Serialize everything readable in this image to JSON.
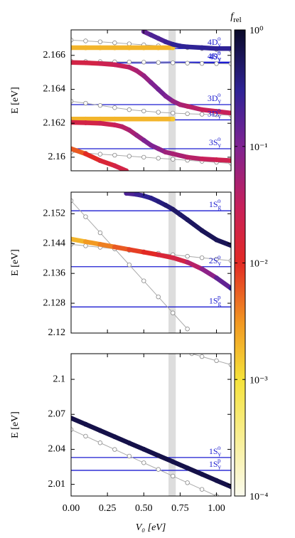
{
  "chart_data": [
    {
      "type": "line",
      "ylabel": "E [eV]",
      "xlim": [
        0,
        1.1
      ],
      "ylim": [
        2.1592,
        2.1675
      ],
      "xticks": [
        0,
        0.25,
        0.5,
        0.75,
        1
      ],
      "yticks": [
        2.166,
        2.164,
        2.162,
        2.16
      ],
      "shaded_x": [
        0.67,
        0.72
      ],
      "levels": [
        {
          "label": "4D",
          "sub": "y",
          "sup": "o",
          "value": 2.1664
        },
        {
          "label": "4D",
          "sub": "y",
          "sup": "o",
          "value": 2.1656
        },
        {
          "label": "4S",
          "sub": "y",
          "sup": "o",
          "value": 2.16555
        },
        {
          "label": "3D",
          "sub": "y",
          "sup": "o",
          "value": 2.1631
        },
        {
          "label": "3D",
          "sub": "y",
          "sup": "o",
          "value": 2.1622
        },
        {
          "label": "3S",
          "sub": "y",
          "sup": "o",
          "value": 2.1605
        }
      ],
      "series": [
        {
          "style": "open",
          "x": [
            0,
            0.1,
            0.2,
            0.3,
            0.4,
            0.5,
            0.6,
            0.7,
            0.8,
            0.9,
            1.0,
            1.1
          ],
          "values": [
            2.1669,
            2.16685,
            2.1668,
            2.16674,
            2.16668,
            2.16662,
            2.16656,
            2.1665,
            2.16645,
            2.1664,
            2.16635,
            2.1663
          ]
        },
        {
          "style": "open",
          "x": [
            0,
            0.1,
            0.2,
            0.3,
            0.4,
            0.5,
            0.6,
            0.7,
            0.8,
            0.9,
            1.0,
            1.1
          ],
          "values": [
            2.16565,
            2.16564,
            2.16563,
            2.16562,
            2.16561,
            2.1656,
            2.16558,
            2.16556,
            2.16554,
            2.16552,
            2.16551,
            2.1655
          ]
        },
        {
          "style": "open",
          "x": [
            0,
            0.1,
            0.2,
            0.3,
            0.4,
            0.5,
            0.6,
            0.7,
            0.8,
            0.9,
            1.0,
            1.1
          ],
          "values": [
            2.1633,
            2.16318,
            2.16305,
            2.16292,
            2.1628,
            2.16272,
            2.16265,
            2.1626,
            2.16256,
            2.16253,
            2.1625,
            2.16248
          ]
        },
        {
          "style": "open",
          "x": [
            0,
            0.1,
            0.2,
            0.3,
            0.4,
            0.5,
            0.6,
            0.7,
            0.8,
            0.9,
            1.0,
            1.1
          ],
          "values": [
            2.1603,
            2.16024,
            2.16018,
            2.16012,
            2.16006,
            2.16,
            2.15994,
            2.15988,
            2.15982,
            2.15976,
            2.1597,
            2.15964
          ]
        },
        {
          "style": "filled",
          "x": [
            0,
            0.1,
            0.2,
            0.3,
            0.4,
            0.5,
            0.6,
            0.7
          ],
          "values": [
            2.16645,
            2.16645,
            2.16645,
            2.16645,
            2.16645,
            2.16645,
            2.16645,
            2.16645
          ],
          "f": [
            0.002,
            0.002,
            0.002,
            0.002,
            0.002,
            0.002,
            0.002,
            0.0015
          ]
        },
        {
          "style": "filled",
          "x": [
            0,
            0.1,
            0.2,
            0.3,
            0.4,
            0.5,
            0.6,
            0.7
          ],
          "values": [
            2.16225,
            2.16225,
            2.16225,
            2.16225,
            2.16225,
            2.16225,
            2.16225,
            2.16225
          ],
          "f": [
            0.002,
            0.002,
            0.002,
            0.002,
            0.002,
            0.002,
            0.002,
            0.0015
          ]
        },
        {
          "style": "filled",
          "x": [
            0.5,
            0.55,
            0.6,
            0.65,
            0.7,
            0.75,
            0.8,
            0.9,
            1.0,
            1.1
          ],
          "values": [
            2.1674,
            2.1672,
            2.167,
            2.1668,
            2.16665,
            2.16655,
            2.1665,
            2.16645,
            2.1664,
            2.1664
          ],
          "f": [
            0.15,
            0.2,
            0.2,
            0.25,
            0.3,
            0.3,
            0.3,
            0.3,
            0.3,
            0.3
          ]
        },
        {
          "style": "filled",
          "x": [
            0,
            0.1,
            0.2,
            0.3,
            0.4,
            0.45,
            0.5,
            0.55,
            0.6,
            0.65,
            0.7,
            0.75,
            0.8,
            0.9,
            1.0,
            1.1
          ],
          "values": [
            2.16558,
            2.16556,
            2.16552,
            2.16545,
            2.1653,
            2.1651,
            2.1648,
            2.1644,
            2.164,
            2.1636,
            2.1633,
            2.1631,
            2.163,
            2.1628,
            2.1627,
            2.1626
          ],
          "f": [
            0.02,
            0.02,
            0.025,
            0.03,
            0.04,
            0.05,
            0.07,
            0.1,
            0.12,
            0.1,
            0.07,
            0.05,
            0.04,
            0.03,
            0.03,
            0.025
          ]
        },
        {
          "style": "filled",
          "x": [
            0,
            0.1,
            0.2,
            0.3,
            0.35,
            0.4,
            0.45,
            0.5,
            0.55,
            0.6,
            0.65,
            0.7,
            0.8,
            0.9,
            1.0,
            1.1
          ],
          "values": [
            2.16205,
            2.16203,
            2.162,
            2.1619,
            2.1618,
            2.1616,
            2.1613,
            2.161,
            2.1607,
            2.1605,
            2.1603,
            2.1602,
            2.16,
            2.1599,
            2.15985,
            2.1598
          ],
          "f": [
            0.02,
            0.02,
            0.025,
            0.03,
            0.04,
            0.05,
            0.07,
            0.1,
            0.1,
            0.08,
            0.06,
            0.05,
            0.04,
            0.03,
            0.025,
            0.02
          ]
        },
        {
          "style": "filled",
          "x": [
            0,
            0.1,
            0.2,
            0.3,
            0.38
          ],
          "values": [
            2.1605,
            2.1602,
            2.1598,
            2.1595,
            2.1592
          ],
          "f": [
            0.006,
            0.01,
            0.015,
            0.02,
            0.02
          ]
        }
      ]
    },
    {
      "type": "line",
      "ylabel": "E [eV]",
      "xlim": [
        0,
        1.1
      ],
      "ylim": [
        2.12,
        2.1578
      ],
      "xticks": [
        0,
        0.25,
        0.5,
        0.75,
        1
      ],
      "yticks": [
        2.152,
        2.144,
        2.136,
        2.128,
        2.12
      ],
      "shaded_x": [
        0.67,
        0.72
      ],
      "levels": [
        {
          "label": "1S",
          "sub": "g",
          "sup": "o",
          "value": 2.1528
        },
        {
          "label": "2S",
          "sub": "y",
          "sup": "o",
          "value": 2.1378
        },
        {
          "label": "1S",
          "sub": "g",
          "sup": "p",
          "value": 2.127
        }
      ],
      "series": [
        {
          "style": "open",
          "x": [
            0,
            0.1,
            0.2,
            0.3,
            0.4,
            0.5,
            0.6,
            0.7,
            0.8
          ],
          "values": [
            2.1555,
            2.1512,
            2.1469,
            2.1426,
            2.1383,
            2.134,
            2.1297,
            2.1254,
            2.1211
          ]
        },
        {
          "style": "open",
          "x": [
            0,
            0.1,
            0.2,
            0.3,
            0.4,
            0.5,
            0.6,
            0.7,
            0.8,
            0.9,
            1.0,
            1.1
          ],
          "values": [
            2.1438,
            2.1434,
            2.143,
            2.1426,
            2.1422,
            2.1418,
            2.1414,
            2.141,
            2.1406,
            2.1402,
            2.1398,
            2.1394
          ]
        },
        {
          "style": "filled",
          "x": [
            0,
            0.1,
            0.2,
            0.3,
            0.4,
            0.5,
            0.6,
            0.7,
            0.8,
            0.9,
            1.0,
            1.1
          ],
          "values": [
            2.1452,
            2.1445,
            2.1438,
            2.1431,
            2.1424,
            2.1417,
            2.141,
            2.1402,
            2.139,
            2.1372,
            2.1348,
            2.132
          ],
          "f": [
            0.002,
            0.003,
            0.004,
            0.006,
            0.008,
            0.01,
            0.015,
            0.02,
            0.04,
            0.08,
            0.15,
            0.3
          ]
        },
        {
          "style": "filled",
          "x": [
            0.38,
            0.45,
            0.5,
            0.55,
            0.6,
            0.65,
            0.7,
            0.75,
            0.8,
            0.9,
            1.0,
            1.1
          ],
          "values": [
            2.1575,
            2.1572,
            2.1568,
            2.1562,
            2.1553,
            2.1543,
            2.1532,
            2.1518,
            2.1504,
            2.1475,
            2.145,
            2.1435
          ],
          "f": [
            0.2,
            0.25,
            0.3,
            0.35,
            0.4,
            0.45,
            0.5,
            0.5,
            0.55,
            0.6,
            0.6,
            0.6
          ]
        }
      ]
    },
    {
      "type": "line",
      "ylabel": "E [eV]",
      "xlim": [
        0,
        1.1
      ],
      "ylim": [
        2.0,
        2.122
      ],
      "xticks": [
        {
          "value": 0,
          "label": "0.00"
        },
        0.25,
        {
          "value": 0.5,
          "label": "0.50"
        },
        0.75,
        {
          "value": 1,
          "label": "1.00"
        }
      ],
      "yticks": [
        2.1,
        2.07,
        2.04,
        2.01
      ],
      "shaded_x": [
        0.67,
        0.72
      ],
      "levels": [
        {
          "label": "1S",
          "sub": "y",
          "sup": "o",
          "value": 2.033
        },
        {
          "label": "1S",
          "sub": "y",
          "sup": "p",
          "value": 2.022
        }
      ],
      "series": [
        {
          "style": "open",
          "x": [
            0.83,
            0.9,
            1.0,
            1.1
          ],
          "values": [
            2.122,
            2.1195,
            2.116,
            2.1125
          ]
        },
        {
          "style": "open",
          "x": [
            0,
            0.1,
            0.2,
            0.3,
            0.4,
            0.5,
            0.6,
            0.7,
            0.8,
            0.9,
            1.0
          ],
          "values": [
            2.057,
            2.0513,
            2.0456,
            2.0399,
            2.0342,
            2.0285,
            2.0228,
            2.0171,
            2.0114,
            2.0057,
            2.0
          ]
        },
        {
          "style": "filled",
          "x": [
            0,
            0.1,
            0.2,
            0.3,
            0.4,
            0.5,
            0.6,
            0.7,
            0.8,
            0.9,
            1.0,
            1.1
          ],
          "values": [
            2.0668,
            2.0615,
            2.0561,
            2.0508,
            2.0454,
            2.0401,
            2.0347,
            2.0294,
            2.024,
            2.0187,
            2.0133,
            2.008
          ],
          "f": [
            0.7,
            0.7,
            0.7,
            0.7,
            0.7,
            0.7,
            0.7,
            0.7,
            0.7,
            0.7,
            0.7,
            0.7
          ]
        }
      ]
    }
  ],
  "xlabel": "V₀ [eV]",
  "level_color": "#1c1cd0",
  "shade_color": "#dddddd",
  "colorbar": {
    "label": "f",
    "label_sub": "rel",
    "lim": [
      0.0001,
      1
    ],
    "log": true,
    "ticks": [
      {
        "value": 1,
        "label": "10⁰"
      },
      {
        "value": 0.1,
        "label": "10⁻¹"
      },
      {
        "value": 0.01,
        "label": "10⁻²"
      },
      {
        "value": 0.001,
        "label": "10⁻³"
      },
      {
        "value": 0.0001,
        "label": "10⁻⁴"
      }
    ],
    "colormap": [
      {
        "value": 0.0001,
        "color": "#fbfbee"
      },
      {
        "value": 0.001,
        "color": "#f5e23a"
      },
      {
        "value": 0.003,
        "color": "#f29a22"
      },
      {
        "value": 0.01,
        "color": "#e22a24"
      },
      {
        "value": 0.03,
        "color": "#c8205a"
      },
      {
        "value": 0.1,
        "color": "#7f2392"
      },
      {
        "value": 0.3,
        "color": "#2f2396"
      },
      {
        "value": 1,
        "color": "#0a0a28"
      }
    ]
  }
}
